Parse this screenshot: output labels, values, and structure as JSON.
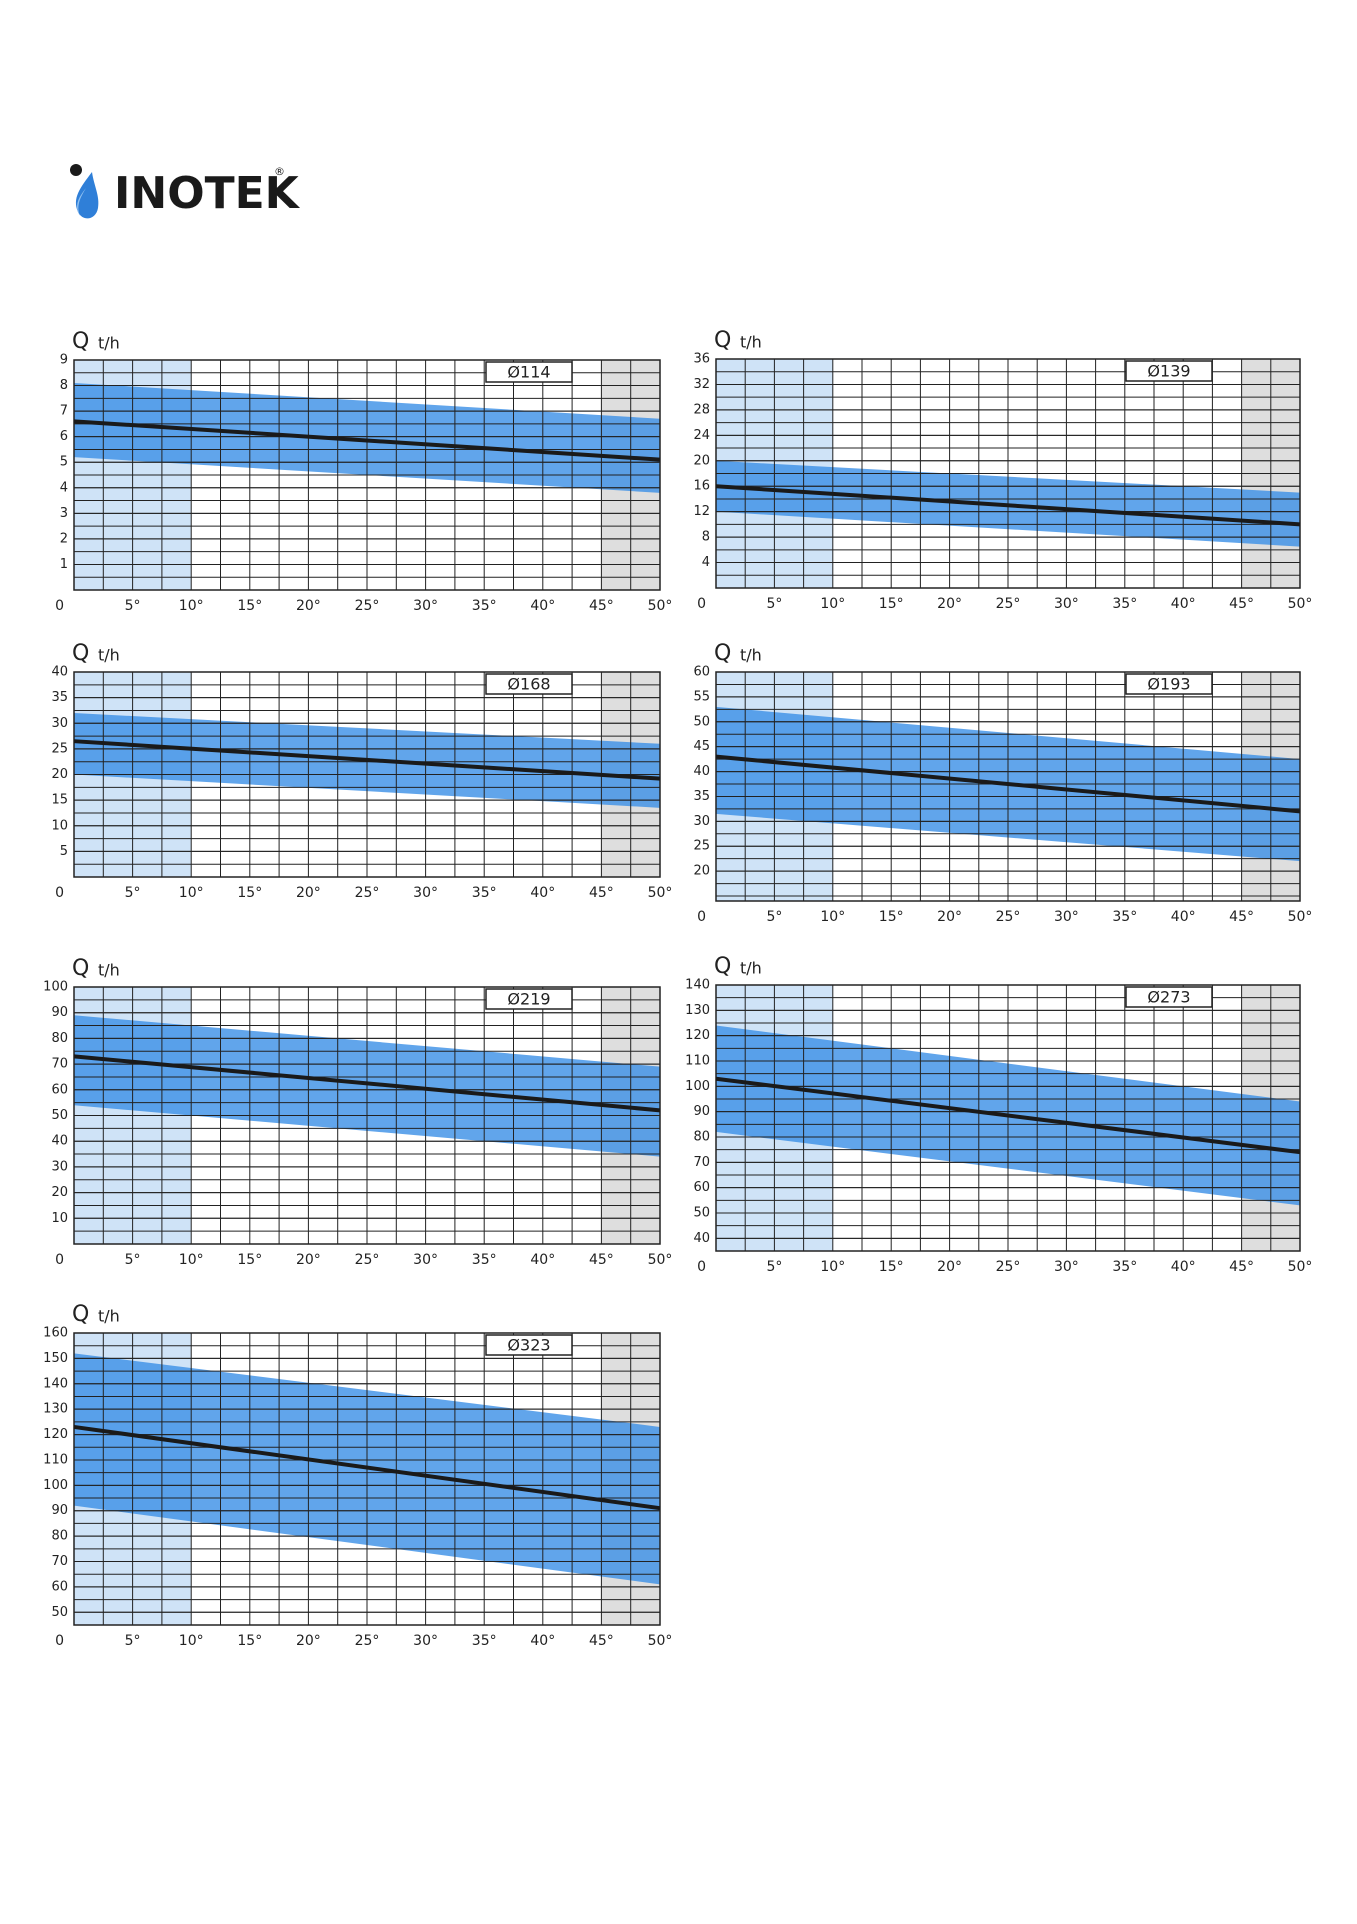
{
  "header": {
    "logo": "INOTEK",
    "mark": "®"
  },
  "chart_data": [
    {
      "type": "line",
      "label": "Ø114",
      "y_label": "Q",
      "y_unit": "t/h",
      "x": [
        0,
        50
      ],
      "values": [
        6.6,
        5.1
      ],
      "band": {
        "upper": [
          8.1,
          6.7
        ],
        "lower": [
          5.2,
          3.8
        ]
      },
      "color": "#1a1a1a",
      "band_color": "#3a8ee6",
      "cold_zone": [
        0,
        10
      ],
      "hot_zone": [
        45,
        50
      ],
      "zone_colors": [
        "#cfe3f7",
        "#dedede"
      ],
      "xlim": [
        0,
        50
      ],
      "xticks": [
        0,
        {
          "value": 5,
          "label": "5°"
        },
        {
          "value": 10,
          "label": "10°"
        },
        {
          "value": 15,
          "label": "15°"
        },
        {
          "value": 20,
          "label": "20°"
        },
        {
          "value": 25,
          "label": "25°"
        },
        {
          "value": 30,
          "label": "30°"
        },
        {
          "value": 35,
          "label": "35°"
        },
        {
          "value": 40,
          "label": "40°"
        },
        {
          "value": 45,
          "label": "45°"
        },
        {
          "value": 50,
          "label": "50°"
        }
      ],
      "ylim": [
        0,
        9
      ],
      "yticks": [
        1,
        2,
        3,
        4,
        5,
        6,
        7,
        8,
        9
      ],
      "grid": true
    },
    {
      "type": "line",
      "label": "Ø139",
      "y_label": "Q",
      "y_unit": "t/h",
      "x": [
        0,
        50
      ],
      "values": [
        16,
        10
      ],
      "band": {
        "upper": [
          20,
          15
        ],
        "lower": [
          12,
          6.5
        ]
      },
      "color": "#1a1a1a",
      "band_color": "#3a8ee6",
      "cold_zone": [
        0,
        10
      ],
      "hot_zone": [
        45,
        50
      ],
      "zone_colors": [
        "#cfe3f7",
        "#dedede"
      ],
      "xlim": [
        0,
        50
      ],
      "xticks": [
        0,
        {
          "value": 5,
          "label": "5°"
        },
        {
          "value": 10,
          "label": "10°"
        },
        {
          "value": 15,
          "label": "15°"
        },
        {
          "value": 20,
          "label": "20°"
        },
        {
          "value": 25,
          "label": "25°"
        },
        {
          "value": 30,
          "label": "30°"
        },
        {
          "value": 35,
          "label": "35°"
        },
        {
          "value": 40,
          "label": "40°"
        },
        {
          "value": 45,
          "label": "45°"
        },
        {
          "value": 50,
          "label": "50°"
        }
      ],
      "ylim": [
        0,
        36
      ],
      "yticks": [
        4,
        8,
        12,
        16,
        20,
        24,
        28,
        32,
        36
      ],
      "grid": true
    },
    {
      "type": "line",
      "label": "Ø168",
      "y_label": "Q",
      "y_unit": "t/h",
      "x": [
        0,
        50
      ],
      "values": [
        26.5,
        19.2
      ],
      "band": {
        "upper": [
          32,
          26
        ],
        "lower": [
          20,
          13.5
        ]
      },
      "color": "#1a1a1a",
      "band_color": "#3a8ee6",
      "cold_zone": [
        0,
        10
      ],
      "hot_zone": [
        45,
        50
      ],
      "zone_colors": [
        "#cfe3f7",
        "#dedede"
      ],
      "xlim": [
        0,
        50
      ],
      "xticks": [
        0,
        {
          "value": 5,
          "label": "5°"
        },
        {
          "value": 10,
          "label": "10°"
        },
        {
          "value": 15,
          "label": "15°"
        },
        {
          "value": 20,
          "label": "20°"
        },
        {
          "value": 25,
          "label": "25°"
        },
        {
          "value": 30,
          "label": "30°"
        },
        {
          "value": 35,
          "label": "35°"
        },
        {
          "value": 40,
          "label": "40°"
        },
        {
          "value": 45,
          "label": "45°"
        },
        {
          "value": 50,
          "label": "50°"
        }
      ],
      "ylim": [
        0,
        40
      ],
      "yticks": [
        5,
        10,
        15,
        20,
        25,
        30,
        35,
        40
      ],
      "grid": true
    },
    {
      "type": "line",
      "label": "Ø193",
      "y_label": "Q",
      "y_unit": "t/h",
      "x": [
        0,
        50
      ],
      "values": [
        43,
        32
      ],
      "band": {
        "upper": [
          53,
          42.5
        ],
        "lower": [
          31.5,
          22
        ]
      },
      "color": "#1a1a1a",
      "band_color": "#3a8ee6",
      "cold_zone": [
        0,
        10
      ],
      "hot_zone": [
        45,
        50
      ],
      "zone_colors": [
        "#cfe3f7",
        "#dedede"
      ],
      "xlim": [
        0,
        50
      ],
      "xticks": [
        0,
        {
          "value": 5,
          "label": "5°"
        },
        {
          "value": 10,
          "label": "10°"
        },
        {
          "value": 15,
          "label": "15°"
        },
        {
          "value": 20,
          "label": "20°"
        },
        {
          "value": 25,
          "label": "25°"
        },
        {
          "value": 30,
          "label": "30°"
        },
        {
          "value": 35,
          "label": "35°"
        },
        {
          "value": 40,
          "label": "40°"
        },
        {
          "value": 45,
          "label": "45°"
        },
        {
          "value": 50,
          "label": "50°"
        }
      ],
      "ylim": [
        14,
        60
      ],
      "yticks": [
        20,
        25,
        30,
        35,
        40,
        45,
        50,
        55,
        60
      ],
      "grid": true
    },
    {
      "type": "line",
      "label": "Ø219",
      "y_label": "Q",
      "y_unit": "t/h",
      "x": [
        0,
        50
      ],
      "values": [
        73,
        52
      ],
      "band": {
        "upper": [
          89,
          69
        ],
        "lower": [
          54,
          34
        ]
      },
      "color": "#1a1a1a",
      "band_color": "#3a8ee6",
      "cold_zone": [
        0,
        10
      ],
      "hot_zone": [
        45,
        50
      ],
      "zone_colors": [
        "#cfe3f7",
        "#dedede"
      ],
      "xlim": [
        0,
        50
      ],
      "xticks": [
        0,
        {
          "value": 5,
          "label": "5°"
        },
        {
          "value": 10,
          "label": "10°"
        },
        {
          "value": 15,
          "label": "15°"
        },
        {
          "value": 20,
          "label": "20°"
        },
        {
          "value": 25,
          "label": "25°"
        },
        {
          "value": 30,
          "label": "30°"
        },
        {
          "value": 35,
          "label": "35°"
        },
        {
          "value": 40,
          "label": "40°"
        },
        {
          "value": 45,
          "label": "45°"
        },
        {
          "value": 50,
          "label": "50°"
        }
      ],
      "ylim": [
        0,
        100
      ],
      "yticks": [
        10,
        20,
        30,
        40,
        50,
        60,
        70,
        80,
        90,
        100
      ],
      "grid": true
    },
    {
      "type": "line",
      "label": "Ø273",
      "y_label": "Q",
      "y_unit": "t/h",
      "x": [
        0,
        50
      ],
      "values": [
        103,
        74
      ],
      "band": {
        "upper": [
          124,
          94
        ],
        "lower": [
          82,
          53
        ]
      },
      "color": "#1a1a1a",
      "band_color": "#3a8ee6",
      "cold_zone": [
        0,
        10
      ],
      "hot_zone": [
        45,
        50
      ],
      "zone_colors": [
        "#cfe3f7",
        "#dedede"
      ],
      "xlim": [
        0,
        50
      ],
      "xticks": [
        0,
        {
          "value": 5,
          "label": "5°"
        },
        {
          "value": 10,
          "label": "10°"
        },
        {
          "value": 15,
          "label": "15°"
        },
        {
          "value": 20,
          "label": "20°"
        },
        {
          "value": 25,
          "label": "25°"
        },
        {
          "value": 30,
          "label": "30°"
        },
        {
          "value": 35,
          "label": "35°"
        },
        {
          "value": 40,
          "label": "40°"
        },
        {
          "value": 45,
          "label": "45°"
        },
        {
          "value": 50,
          "label": "50°"
        }
      ],
      "ylim": [
        35,
        140
      ],
      "yticks": [
        40,
        50,
        60,
        70,
        80,
        90,
        100,
        110,
        120,
        130,
        140
      ],
      "grid": true
    },
    {
      "type": "line",
      "label": "Ø323",
      "y_label": "Q",
      "y_unit": "t/h",
      "x": [
        0,
        50
      ],
      "values": [
        123,
        91
      ],
      "band": {
        "upper": [
          152,
          123
        ],
        "lower": [
          92,
          61
        ]
      },
      "color": "#1a1a1a",
      "band_color": "#3a8ee6",
      "cold_zone": [
        0,
        10
      ],
      "hot_zone": [
        45,
        50
      ],
      "zone_colors": [
        "#cfe3f7",
        "#dedede"
      ],
      "xlim": [
        0,
        50
      ],
      "xticks": [
        0,
        {
          "value": 5,
          "label": "5°"
        },
        {
          "value": 10,
          "label": "10°"
        },
        {
          "value": 15,
          "label": "15°"
        },
        {
          "value": 20,
          "label": "20°"
        },
        {
          "value": 25,
          "label": "25°"
        },
        {
          "value": 30,
          "label": "30°"
        },
        {
          "value": 35,
          "label": "35°"
        },
        {
          "value": 40,
          "label": "40°"
        },
        {
          "value": 45,
          "label": "45°"
        },
        {
          "value": 50,
          "label": "50°"
        }
      ],
      "ylim": [
        45,
        160
      ],
      "yticks": [
        50,
        60,
        70,
        80,
        90,
        100,
        110,
        120,
        130,
        140,
        150,
        160
      ],
      "grid": true
    }
  ]
}
